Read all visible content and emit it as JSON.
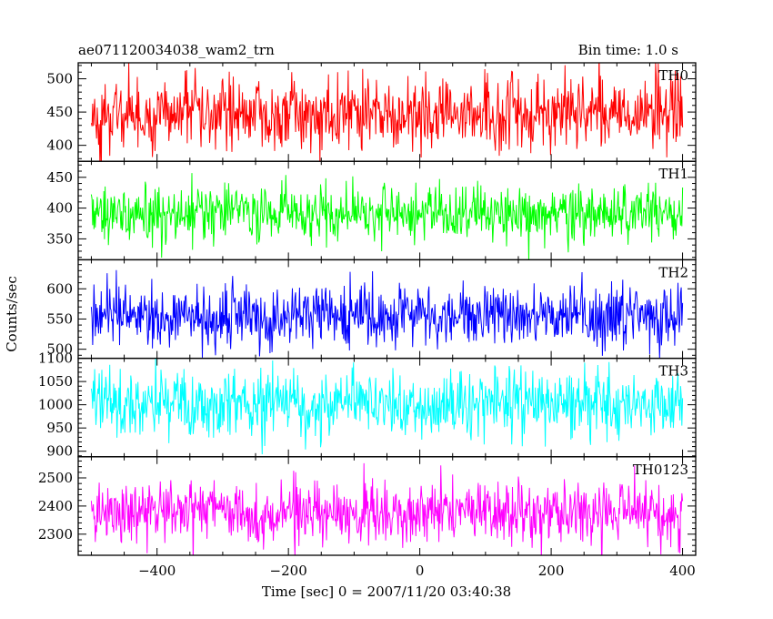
{
  "chart_data": {
    "type": "line",
    "title_left": "ae071120034038_wam2_trn",
    "title_right": "Bin time: 1.0 s",
    "xlabel": "Time [sec] 0 = 2007/11/20 03:40:38",
    "ylabel": "Counts/sec",
    "xlim": [
      -520,
      420
    ],
    "x_range": [
      -500,
      400
    ],
    "x_step": 1,
    "x_ticks": [
      -400,
      -200,
      0,
      200,
      400
    ],
    "x_minor_step": 50,
    "panels": [
      {
        "name": "TH0",
        "color": "#ff0000",
        "mean": 448,
        "sd": 28,
        "ylim": [
          376,
          524
        ],
        "y_ticks": [
          400,
          450,
          500
        ],
        "y_minor_step": 10,
        "clip_top": true,
        "clip_bottom": true
      },
      {
        "name": "TH1",
        "color": "#00ff00",
        "mean": 390,
        "sd": 23,
        "ylim": [
          316,
          476
        ],
        "y_ticks": [
          350,
          400,
          450
        ],
        "y_minor_step": 10,
        "clip_top": false,
        "clip_bottom": true
      },
      {
        "name": "TH2",
        "color": "#0000ff",
        "mean": 555,
        "sd": 25,
        "ylim": [
          485,
          648
        ],
        "y_ticks": [
          500,
          550,
          600
        ],
        "y_minor_step": 10,
        "clip_top": true,
        "clip_bottom": true
      },
      {
        "name": "TH3",
        "color": "#00ffff",
        "mean": 1000,
        "sd": 35,
        "ylim": [
          888,
          1100
        ],
        "y_ticks": [
          900,
          950,
          1000,
          1050,
          1100
        ],
        "y_minor_step": 10,
        "clip_top": true,
        "clip_bottom": true
      },
      {
        "name": "TH0123",
        "color": "#ff00ff",
        "mean": 2380,
        "sd": 55,
        "ylim": [
          2225,
          2575
        ],
        "y_ticks": [
          2300,
          2400,
          2500
        ],
        "y_minor_step": 20,
        "clip_top": true,
        "clip_bottom": true
      }
    ]
  }
}
